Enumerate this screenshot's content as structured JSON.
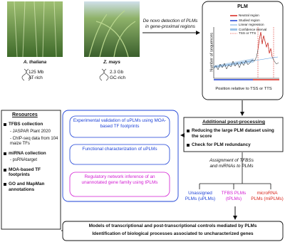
{
  "species": [
    {
      "name": "A. thaliana",
      "genome_size": "125 Mb",
      "composition": "AT-rich"
    },
    {
      "name": "Z. mays",
      "genome_size": "2.3 Gb",
      "composition": "GC-rich"
    }
  ],
  "detection_label": "De novo detection of PLMs in gene-proximal regions",
  "plm_panel": {
    "title": "PLM",
    "legend": [
      "Neutral region",
      "Studied region",
      "Linear regression",
      "Confidence interval",
      "TSS or TTS"
    ],
    "y_label": "Number of sequences",
    "x_label": "Position relative to TSS or TTS"
  },
  "post_processing": {
    "title": "Additional post-processing",
    "items": [
      "Reducing the large PLM dataset using the score",
      "Check for PLM redundancy"
    ]
  },
  "assignment_label": "Assignment of TFBSs and miRNAs to PLMs",
  "plm_classes": [
    "Unassigned PLMs (uPLMs)",
    "TFBS PLMs (tPLMs)",
    "microRNA PLMs (miPLMs)"
  ],
  "applications": [
    "Experimental validation of uPLMs using MOA-based TF footprints",
    "Functional characterization of uPLMs",
    "Regulatory network inference of an unannotated gene family using tPLMs"
  ],
  "resources": {
    "title": "Resources",
    "groups": [
      {
        "name": "TFBS collection",
        "items": [
          "- JASPAR Plant 2020",
          "- ChIP-seq data from 104 maize TFs"
        ]
      },
      {
        "name": "miRNA collection",
        "items": [
          "- psRNAtarget"
        ]
      },
      {
        "name": "MOA-based TF footprints"
      },
      {
        "name": "GO and MapMan annotations"
      }
    ]
  },
  "conclusions": [
    "Models of transcriptional and post-transcriptional controls mediated by PLMs",
    "Identification of biological processes associated to uncharacterized genes"
  ]
}
